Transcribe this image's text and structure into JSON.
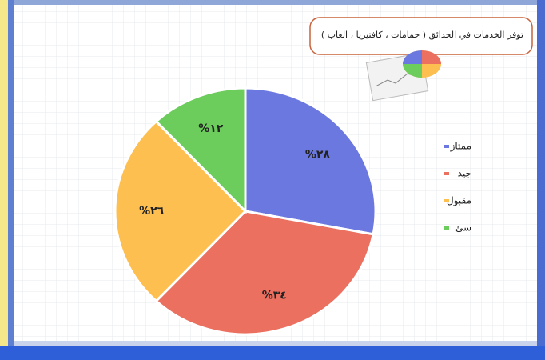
{
  "chart_data": {
    "type": "pie",
    "title": "توفر الخدمات في الحدائق ( حمامات ، كافتيريا ، العاب )",
    "categories": [
      "ممتاز",
      "جيد",
      "مقبول",
      "سئ"
    ],
    "values": [
      28,
      34,
      26,
      12
    ],
    "value_labels": [
      "٢٨%",
      "٣٤%",
      "٢٦%",
      "١٢%"
    ],
    "colors": [
      "#6b78e0",
      "#ec7060",
      "#fdbf50",
      "#6ccc5c"
    ]
  }
}
